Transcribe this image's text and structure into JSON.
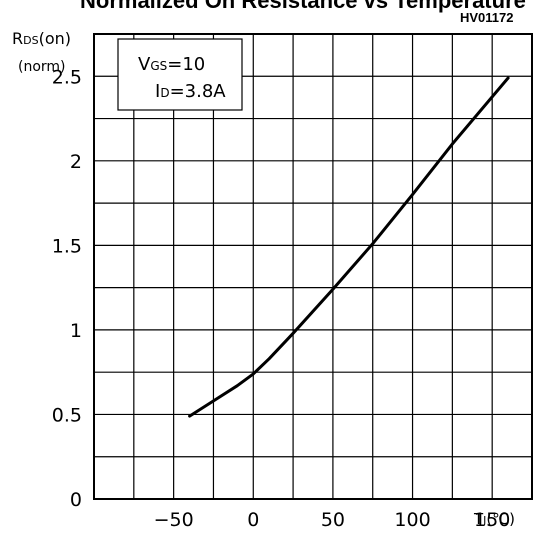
{
  "header": {
    "title_fragment": "Normalized On Resistance vs Temperature",
    "figure_code": "HV01172"
  },
  "chart_data": {
    "type": "line",
    "title": "",
    "ylabel_line1": "R",
    "ylabel_sub": "DS",
    "ylabel_tail": "(on)",
    "ylabel_line2": "(norm)",
    "xlabel": "T",
    "xlabel_sub": "J",
    "xlabel_unit": "(℃)",
    "x_ticks": [
      -50,
      0,
      50,
      100,
      150
    ],
    "x_tick_labels": [
      "−50",
      "0",
      "50",
      "100",
      "150"
    ],
    "y_ticks": [
      0,
      0.5,
      1,
      1.5,
      2,
      2.5
    ],
    "y_tick_labels": [
      "0",
      "0.5",
      "1",
      "1.5",
      "2",
      "2.5"
    ],
    "xlim": [
      -100,
      175
    ],
    "ylim": [
      0,
      2.75
    ],
    "grid": true,
    "legend": {
      "line1_main": "V",
      "line1_sub": "GS",
      "line1_val": "=10",
      "line2_main": "I",
      "line2_sub": "D",
      "line2_val": "=3.8A"
    },
    "series": [
      {
        "x": [
          -40,
          -25,
          -10,
          0,
          10,
          25,
          50,
          75,
          100,
          125,
          160
        ],
        "y": [
          0.49,
          0.58,
          0.67,
          0.74,
          0.83,
          0.98,
          1.24,
          1.51,
          1.8,
          2.1,
          2.49
        ]
      }
    ]
  }
}
